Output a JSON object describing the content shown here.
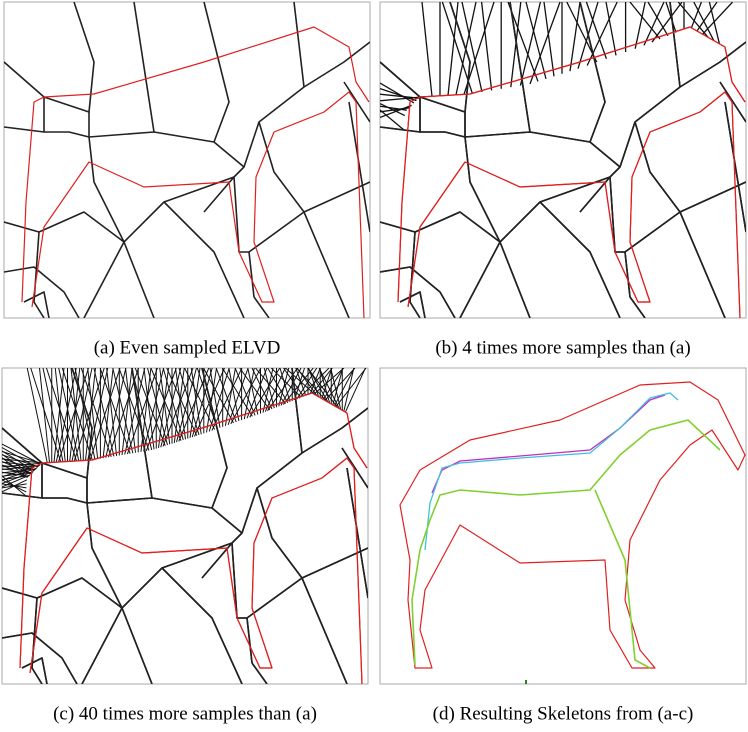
{
  "figure": {
    "panels": [
      {
        "caption": "(a) Even sampled ELVD"
      },
      {
        "caption": "(b) 4 times more samples than (a)"
      },
      {
        "caption": "(c) 40 times more samples than (a)"
      },
      {
        "caption": "(d) Resulting Skeletons from (a-c)"
      }
    ]
  }
}
